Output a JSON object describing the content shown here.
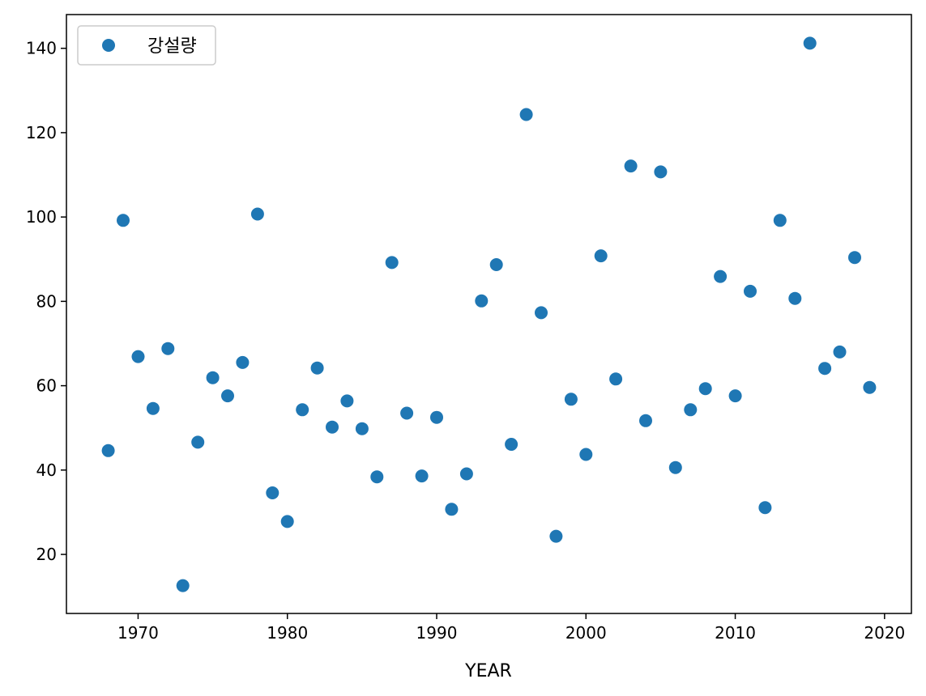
{
  "chart_data": {
    "type": "scatter",
    "xlabel": "YEAR",
    "ylabel": "",
    "xlim": [
      1965.2,
      2021.8
    ],
    "ylim": [
      6,
      148
    ],
    "xticks": [
      1970,
      1980,
      1990,
      2000,
      2010,
      2020
    ],
    "yticks": [
      20,
      40,
      60,
      80,
      100,
      120,
      140
    ],
    "legend": {
      "position": "top-left"
    },
    "grid": false,
    "color": "#1f77b4",
    "series": [
      {
        "name": "강설량",
        "points": [
          [
            1968,
            44.6
          ],
          [
            1969,
            99.2
          ],
          [
            1970,
            66.9
          ],
          [
            1971,
            54.6
          ],
          [
            1972,
            68.8
          ],
          [
            1973,
            12.6
          ],
          [
            1974,
            46.6
          ],
          [
            1975,
            61.9
          ],
          [
            1976,
            57.6
          ],
          [
            1977,
            65.5
          ],
          [
            1978,
            100.7
          ],
          [
            1979,
            34.6
          ],
          [
            1980,
            27.8
          ],
          [
            1981,
            54.3
          ],
          [
            1982,
            64.2
          ],
          [
            1983,
            50.2
          ],
          [
            1984,
            56.4
          ],
          [
            1985,
            49.8
          ],
          [
            1986,
            38.4
          ],
          [
            1987,
            89.2
          ],
          [
            1988,
            53.5
          ],
          [
            1989,
            38.6
          ],
          [
            1990,
            52.5
          ],
          [
            1991,
            30.7
          ],
          [
            1992,
            39.1
          ],
          [
            1993,
            80.1
          ],
          [
            1994,
            88.7
          ],
          [
            1995,
            46.1
          ],
          [
            1996,
            124.3
          ],
          [
            1997,
            77.3
          ],
          [
            1998,
            24.3
          ],
          [
            1999,
            56.8
          ],
          [
            2000,
            43.7
          ],
          [
            2001,
            90.8
          ],
          [
            2002,
            61.6
          ],
          [
            2003,
            112.1
          ],
          [
            2004,
            51.7
          ],
          [
            2005,
            110.7
          ],
          [
            2006,
            40.6
          ],
          [
            2007,
            54.3
          ],
          [
            2008,
            59.3
          ],
          [
            2009,
            85.9
          ],
          [
            2010,
            57.6
          ],
          [
            2011,
            82.4
          ],
          [
            2012,
            31.1
          ],
          [
            2013,
            99.2
          ],
          [
            2014,
            80.7
          ],
          [
            2015,
            141.2
          ],
          [
            2016,
            64.1
          ],
          [
            2017,
            68.0
          ],
          [
            2018,
            90.4
          ],
          [
            2019,
            59.6
          ]
        ]
      }
    ]
  }
}
